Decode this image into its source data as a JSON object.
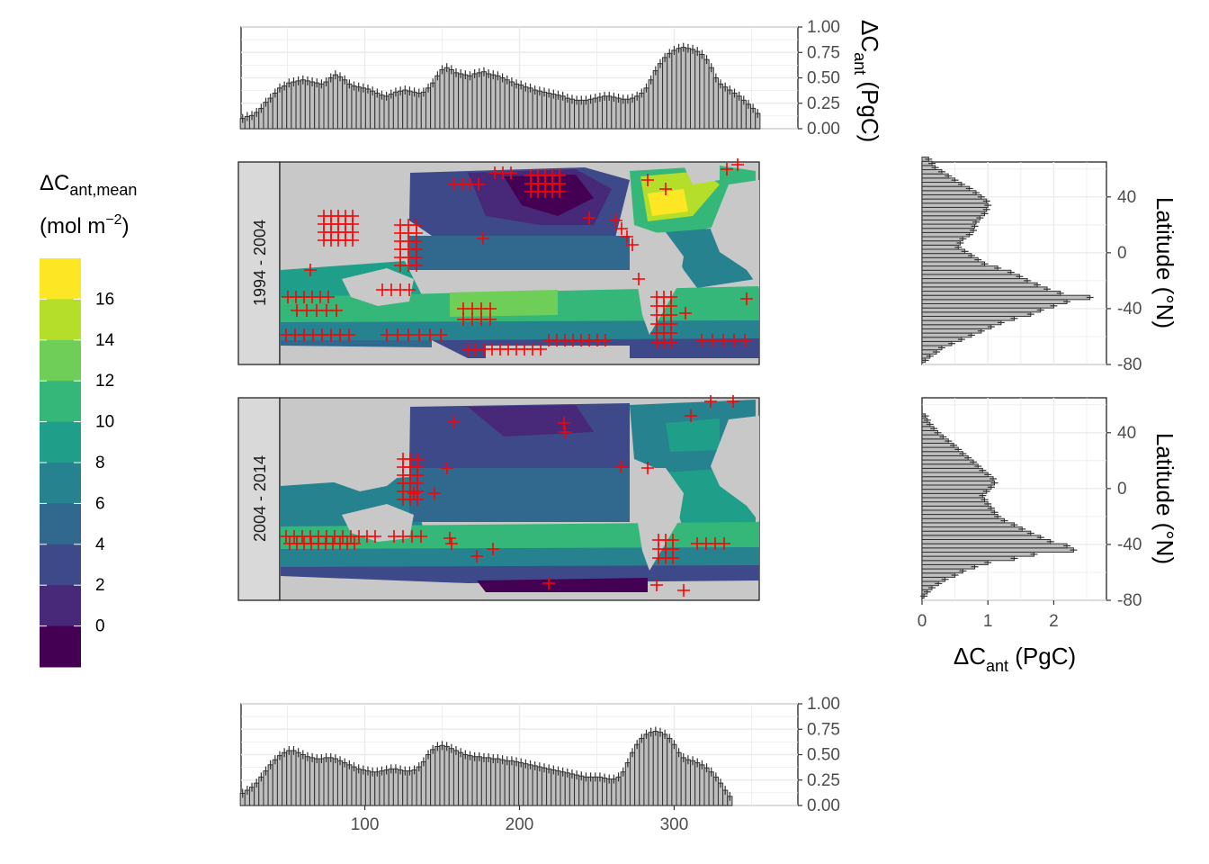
{
  "chart_data": [
    {
      "type": "bar",
      "panel": "top-longitude-1994-2004",
      "ylabel_main": "ΔC",
      "ylabel_sub": "ant",
      "ylabel_unit": " (PgC)",
      "ylim": [
        0,
        1.0
      ],
      "yticks": [
        "0.00",
        "0.25",
        "0.50",
        "0.75",
        "1.00"
      ],
      "xlim": [
        20,
        380
      ],
      "x_start": 21,
      "x_step": 3,
      "values": [
        0.1,
        0.12,
        0.13,
        0.16,
        0.2,
        0.26,
        0.3,
        0.35,
        0.4,
        0.42,
        0.45,
        0.46,
        0.47,
        0.48,
        0.47,
        0.46,
        0.45,
        0.44,
        0.46,
        0.5,
        0.53,
        0.51,
        0.48,
        0.44,
        0.42,
        0.41,
        0.4,
        0.39,
        0.37,
        0.35,
        0.33,
        0.32,
        0.34,
        0.36,
        0.37,
        0.38,
        0.37,
        0.36,
        0.35,
        0.36,
        0.4,
        0.45,
        0.52,
        0.58,
        0.6,
        0.58,
        0.55,
        0.54,
        0.53,
        0.52,
        0.54,
        0.55,
        0.56,
        0.54,
        0.53,
        0.52,
        0.5,
        0.48,
        0.46,
        0.44,
        0.43,
        0.41,
        0.4,
        0.38,
        0.37,
        0.36,
        0.35,
        0.34,
        0.33,
        0.32,
        0.3,
        0.29,
        0.28,
        0.28,
        0.28,
        0.29,
        0.3,
        0.31,
        0.32,
        0.32,
        0.31,
        0.3,
        0.29,
        0.29,
        0.3,
        0.32,
        0.35,
        0.4,
        0.48,
        0.57,
        0.64,
        0.7,
        0.74,
        0.77,
        0.79,
        0.8,
        0.79,
        0.78,
        0.76,
        0.73,
        0.68,
        0.6,
        0.5,
        0.44,
        0.41,
        0.38,
        0.35,
        0.32,
        0.28,
        0.24,
        0.2,
        0.15
      ]
    },
    {
      "type": "bar",
      "panel": "bottom-longitude-2004-2014",
      "ylim": [
        0,
        1.0
      ],
      "yticks": [
        "0.00",
        "0.25",
        "0.50",
        "0.75",
        "1.00"
      ],
      "xticks": [
        "100",
        "200",
        "300"
      ],
      "xlim": [
        20,
        380
      ],
      "x_start": 21,
      "x_step": 3,
      "values": [
        0.12,
        0.15,
        0.18,
        0.22,
        0.28,
        0.34,
        0.4,
        0.45,
        0.49,
        0.52,
        0.54,
        0.54,
        0.52,
        0.5,
        0.48,
        0.47,
        0.46,
        0.46,
        0.47,
        0.47,
        0.46,
        0.44,
        0.42,
        0.4,
        0.38,
        0.36,
        0.35,
        0.34,
        0.33,
        0.33,
        0.34,
        0.35,
        0.36,
        0.36,
        0.35,
        0.34,
        0.34,
        0.35,
        0.38,
        0.43,
        0.5,
        0.55,
        0.58,
        0.59,
        0.58,
        0.56,
        0.54,
        0.52,
        0.5,
        0.49,
        0.48,
        0.48,
        0.47,
        0.47,
        0.46,
        0.46,
        0.45,
        0.44,
        0.44,
        0.43,
        0.42,
        0.41,
        0.4,
        0.39,
        0.38,
        0.37,
        0.36,
        0.35,
        0.34,
        0.33,
        0.32,
        0.31,
        0.3,
        0.29,
        0.28,
        0.28,
        0.28,
        0.28,
        0.27,
        0.26,
        0.26,
        0.28,
        0.33,
        0.42,
        0.52,
        0.6,
        0.66,
        0.7,
        0.72,
        0.73,
        0.72,
        0.7,
        0.66,
        0.6,
        0.52,
        0.47,
        0.45,
        0.44,
        0.42,
        0.4,
        0.37,
        0.33,
        0.28,
        0.22,
        0.15,
        0.09
      ]
    },
    {
      "type": "bar",
      "panel": "right-latitude-1994-2004",
      "orientation": "horizontal",
      "ylabel": "Latitude (°N)",
      "ylim": [
        -80,
        65
      ],
      "yticks": [
        "-80",
        "-40",
        "0",
        "40"
      ],
      "xlim": [
        0,
        2.8
      ],
      "lat_start": -77,
      "lat_step": 3,
      "values": [
        0.05,
        0.12,
        0.22,
        0.3,
        0.45,
        0.6,
        0.75,
        0.9,
        1.05,
        1.2,
        1.4,
        1.65,
        1.8,
        2.0,
        2.2,
        2.55,
        2.1,
        1.9,
        1.75,
        1.6,
        1.48,
        1.35,
        1.15,
        0.95,
        0.85,
        0.75,
        0.65,
        0.55,
        0.58,
        0.62,
        0.72,
        0.78,
        0.8,
        0.82,
        0.88,
        0.95,
        0.98,
        1.0,
        0.98,
        0.9,
        0.82,
        0.72,
        0.6,
        0.5,
        0.4,
        0.3,
        0.2,
        0.15,
        0.1
      ]
    },
    {
      "type": "bar",
      "panel": "right-latitude-2004-2014",
      "orientation": "horizontal",
      "ylabel": "Latitude (°N)",
      "xlabel_main": "ΔC",
      "xlabel_sub": "ant",
      "xlabel_unit": " (PgC)",
      "ylim": [
        -80,
        65
      ],
      "yticks": [
        "-80",
        "-40",
        "0",
        "40"
      ],
      "xticks": [
        "0",
        "1",
        "2"
      ],
      "xlim": [
        0,
        2.8
      ],
      "lat_start": -77,
      "lat_step": 3,
      "values": [
        0.03,
        0.08,
        0.15,
        0.25,
        0.35,
        0.5,
        0.62,
        0.8,
        1.0,
        1.4,
        1.7,
        2.3,
        2.2,
        1.95,
        1.8,
        1.65,
        1.52,
        1.4,
        1.25,
        1.15,
        1.1,
        1.05,
        1.0,
        0.95,
        0.92,
        0.98,
        1.05,
        1.1,
        1.08,
        1.0,
        0.92,
        0.85,
        0.78,
        0.7,
        0.62,
        0.55,
        0.48,
        0.4,
        0.32,
        0.24,
        0.18,
        0.12,
        0.08,
        0.05
      ]
    }
  ],
  "maps": {
    "period_1": "1994 - 2004",
    "period_2": "2004 - 2014"
  },
  "legend": {
    "title_main": "ΔC",
    "title_sub": "ant,mean",
    "title_unit_prefix": "(mol m",
    "title_unit_sup": "−2",
    "title_unit_suffix": ")",
    "labels": [
      "16",
      "14",
      "12",
      "10",
      "8",
      "6",
      "4",
      "2",
      "0"
    ],
    "colors": [
      "#fde725",
      "#b5de2b",
      "#6ece58",
      "#35b779",
      "#1f9e89",
      "#26828e",
      "#31688e",
      "#3e4989",
      "#482878",
      "#440154"
    ]
  }
}
